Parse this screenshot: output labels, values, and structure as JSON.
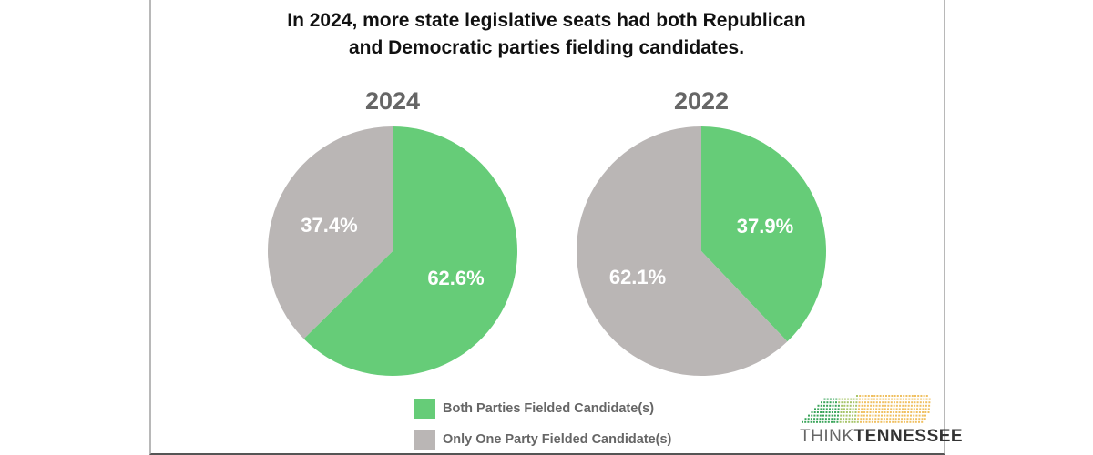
{
  "title_line1": "In 2024, more state legislative seats had both Republican",
  "title_line2": "and Democratic parties fielding candidates.",
  "colors": {
    "both": "#66cc78",
    "one": "#bab6b5"
  },
  "chart_data": [
    {
      "type": "pie",
      "title": "2024",
      "categories": [
        "Both Parties Fielded Candidate(s)",
        "Only One Party Fielded Candidate(s)"
      ],
      "values": [
        62.6,
        37.4
      ],
      "labels": [
        "62.6%",
        "37.4%"
      ]
    },
    {
      "type": "pie",
      "title": "2022",
      "categories": [
        "Both Parties Fielded Candidate(s)",
        "Only One Party Fielded Candidate(s)"
      ],
      "values": [
        37.9,
        62.1
      ],
      "labels": [
        "37.9%",
        "62.1%"
      ]
    }
  ],
  "legend": [
    "Both Parties Fielded Candidate(s)",
    "Only One Party Fielded Candidate(s)"
  ],
  "logo": {
    "think": "THINK",
    "tennessee": "TENNESSEE"
  }
}
